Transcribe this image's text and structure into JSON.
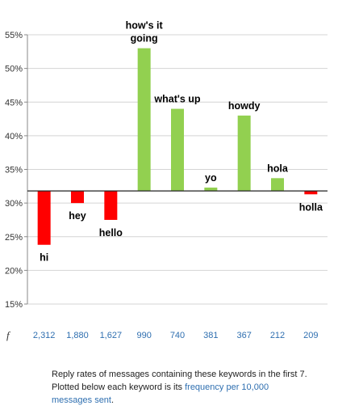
{
  "chart_data": {
    "type": "bar",
    "baseline": 31.8,
    "ylim": [
      15,
      55
    ],
    "yticks": [
      15,
      20,
      25,
      30,
      35,
      40,
      45,
      50,
      55
    ],
    "ytick_labels": [
      "15%",
      "20%",
      "25%",
      "30%",
      "35%",
      "40%",
      "45%",
      "50%",
      "55%"
    ],
    "categories": [
      "hi",
      "hey",
      "hello",
      "how's it going",
      "what's up",
      "yo",
      "howdy",
      "hola",
      "holla"
    ],
    "values": [
      23.8,
      30.0,
      27.5,
      53.0,
      44.0,
      32.3,
      43.0,
      33.7,
      31.3
    ],
    "bar_labels": [
      [
        "hi"
      ],
      [
        "hey"
      ],
      [
        "hello"
      ],
      [
        "how's it",
        "going"
      ],
      [
        "what's up"
      ],
      [
        "yo"
      ],
      [
        "howdy"
      ],
      [
        "hola"
      ],
      [
        "holla"
      ]
    ],
    "frequency_symbol": "f",
    "frequencies": [
      "2,312",
      "1,880",
      "1,627",
      "990",
      "740",
      "381",
      "367",
      "212",
      "209"
    ],
    "colors": {
      "below": "#ff0000",
      "above": "#92d050"
    }
  },
  "caption": {
    "text": "Reply rates of messages containing these keywords in the first 7. Plotted below each keyword is its ",
    "highlight": "frequency per 10,000 messages sent",
    "end": "."
  }
}
